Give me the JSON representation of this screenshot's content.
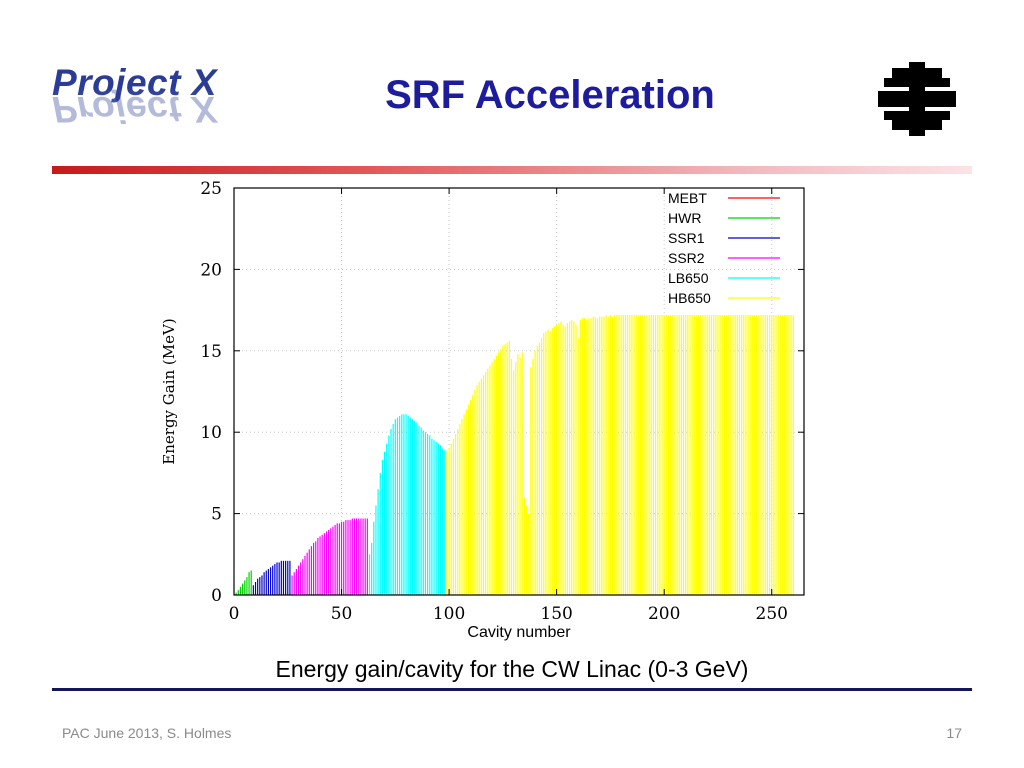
{
  "header": {
    "logo_text": "Project X",
    "title": "SRF Acceleration",
    "lab_logo_icon": "fermilab-logo-icon"
  },
  "caption": "Energy gain/cavity for the CW Linac (0-3 GeV)",
  "footer": {
    "left": "PAC June 2013, S. Holmes",
    "page_number": "17"
  },
  "chart_data": {
    "type": "bar",
    "title": "",
    "xlabel": "Cavity number",
    "ylabel": "Energy Gain (MeV)",
    "xlim": [
      0,
      265
    ],
    "ylim": [
      0,
      25
    ],
    "xticks": [
      0,
      50,
      100,
      150,
      200,
      250
    ],
    "yticks": [
      0,
      5,
      10,
      15,
      20,
      25
    ],
    "grid": true,
    "legend_position": "top-right",
    "series": [
      {
        "name": "MEBT",
        "color": "#ff0000",
        "x": [],
        "values": []
      },
      {
        "name": "HWR",
        "color": "#00d000",
        "x": [
          1,
          2,
          3,
          4,
          5,
          6,
          7,
          8
        ],
        "values": [
          0.15,
          0.3,
          0.5,
          0.7,
          0.9,
          1.1,
          1.4,
          1.5
        ]
      },
      {
        "name": "SSR1",
        "color": "#0000cc",
        "x": [
          9,
          10,
          11,
          12,
          13,
          14,
          15,
          16,
          17,
          18,
          19,
          20,
          21,
          22,
          23,
          24,
          25,
          26
        ],
        "values": [
          0.6,
          0.8,
          1.0,
          1.1,
          1.2,
          1.4,
          1.5,
          1.6,
          1.7,
          1.8,
          1.9,
          2.0,
          2.0,
          2.1,
          2.1,
          2.1,
          2.1,
          2.1
        ]
      },
      {
        "name": "SSR2",
        "color": "#ff00ff",
        "x": [
          27,
          28,
          29,
          30,
          31,
          32,
          33,
          34,
          35,
          36,
          37,
          38,
          39,
          40,
          41,
          42,
          43,
          44,
          45,
          46,
          47,
          48,
          49,
          50,
          51,
          52,
          53,
          54,
          55,
          56,
          57,
          58,
          59,
          60,
          61,
          62
        ],
        "values": [
          1.2,
          1.4,
          1.6,
          1.8,
          2.0,
          2.2,
          2.4,
          2.6,
          2.8,
          3.0,
          3.2,
          3.3,
          3.5,
          3.6,
          3.7,
          3.8,
          3.9,
          4.0,
          4.1,
          4.2,
          4.3,
          4.4,
          4.4,
          4.5,
          4.5,
          4.6,
          4.6,
          4.6,
          4.7,
          4.7,
          4.7,
          4.7,
          4.7,
          4.7,
          4.7,
          4.7
        ]
      },
      {
        "name": "LB650",
        "color": "#00ffff",
        "x": [
          63,
          64,
          65,
          66,
          67,
          68,
          69,
          70,
          71,
          72,
          73,
          74,
          75,
          76,
          77,
          78,
          79,
          80,
          81,
          82,
          83,
          84,
          85,
          86,
          87,
          88,
          89,
          90,
          91,
          92,
          93,
          94,
          95,
          96,
          97,
          98
        ],
        "values": [
          2.5,
          3.2,
          4.5,
          5.5,
          6.5,
          7.5,
          8.3,
          8.8,
          9.3,
          9.8,
          10.2,
          10.5,
          10.8,
          10.9,
          11.0,
          11.1,
          11.1,
          11.1,
          11.0,
          10.9,
          10.8,
          10.7,
          10.6,
          10.4,
          10.3,
          10.1,
          10.0,
          9.9,
          9.8,
          9.6,
          9.5,
          9.4,
          9.3,
          9.2,
          9.0,
          8.9
        ]
      },
      {
        "name": "HB650",
        "color": "#ffff00",
        "x": [
          99,
          100,
          101,
          102,
          103,
          104,
          105,
          106,
          107,
          108,
          109,
          110,
          111,
          112,
          113,
          114,
          115,
          116,
          117,
          118,
          119,
          120,
          121,
          122,
          123,
          124,
          125,
          126,
          127,
          128,
          129,
          130,
          131,
          132,
          133,
          134,
          135,
          136,
          137,
          138,
          139,
          140,
          141,
          142,
          143,
          144,
          145,
          146,
          147,
          148,
          149,
          150,
          151,
          152,
          153,
          154,
          155,
          156,
          157,
          158,
          159,
          160,
          161,
          162,
          163,
          164,
          165,
          166,
          167,
          168,
          169,
          170,
          171,
          172,
          173,
          174,
          175,
          176,
          177,
          178,
          179,
          180,
          181,
          182,
          183,
          184,
          185,
          186,
          187,
          188,
          189,
          190,
          191,
          192,
          193,
          194,
          195,
          196,
          197,
          198,
          199,
          200,
          201,
          202,
          203,
          204,
          205,
          206,
          207,
          208,
          209,
          210,
          211,
          212,
          213,
          214,
          215,
          216,
          217,
          218,
          219,
          220,
          221,
          222,
          223,
          224,
          225,
          226,
          227,
          228,
          229,
          230,
          231,
          232,
          233,
          234,
          235,
          236,
          237,
          238,
          239,
          240,
          241,
          242,
          243,
          244,
          245,
          246,
          247,
          248,
          249,
          250,
          251,
          252,
          253,
          254,
          255,
          256,
          257,
          258,
          259,
          260
        ],
        "values": [
          8.8,
          9.0,
          9.3,
          9.6,
          9.9,
          10.2,
          10.5,
          10.8,
          11.1,
          11.4,
          11.7,
          12.0,
          12.3,
          12.6,
          12.9,
          13.1,
          13.3,
          13.5,
          13.7,
          13.9,
          14.1,
          14.3,
          14.5,
          14.7,
          14.9,
          15.1,
          15.3,
          15.4,
          15.5,
          15.6,
          14.5,
          13.8,
          14.3,
          14.8,
          14.6,
          14.9,
          6.0,
          5.5,
          5.0,
          14.0,
          14.5,
          15.0,
          15.3,
          15.5,
          15.8,
          16.1,
          16.2,
          16.3,
          16.2,
          16.4,
          16.5,
          16.6,
          16.7,
          16.8,
          16.6,
          16.5,
          16.7,
          16.8,
          16.9,
          16.8,
          16.6,
          15.8,
          16.9,
          17.0,
          17.0,
          16.9,
          17.0,
          17.0,
          17.1,
          17.1,
          17.0,
          17.1,
          17.1,
          17.1,
          17.2,
          17.1,
          17.2,
          17.1,
          17.2,
          17.2,
          17.2,
          17.2,
          17.2,
          17.2,
          17.2,
          17.2,
          17.2,
          17.2,
          17.2,
          17.2,
          17.2,
          17.2,
          17.2,
          17.2,
          17.2,
          17.2,
          17.2,
          17.2,
          17.2,
          17.2,
          17.2,
          17.2,
          17.2,
          17.2,
          17.2,
          17.2,
          17.2,
          17.2,
          17.2,
          17.2,
          17.2,
          17.2,
          17.2,
          17.2,
          17.2,
          17.2,
          17.2,
          17.2,
          17.2,
          17.2,
          17.2,
          17.2,
          17.2,
          17.2,
          17.2,
          17.2,
          17.2,
          17.2,
          17.2,
          17.2,
          17.2,
          17.2,
          17.2,
          17.2,
          17.2,
          17.2,
          17.2,
          17.2,
          17.2,
          17.2,
          17.2,
          17.2,
          17.2,
          17.2,
          17.2,
          17.2,
          17.2,
          17.2,
          17.2,
          17.2,
          17.2,
          17.2,
          17.2,
          17.2,
          17.2,
          17.2,
          17.2,
          17.2,
          17.2,
          17.2,
          17.2,
          17.2
        ]
      }
    ]
  }
}
